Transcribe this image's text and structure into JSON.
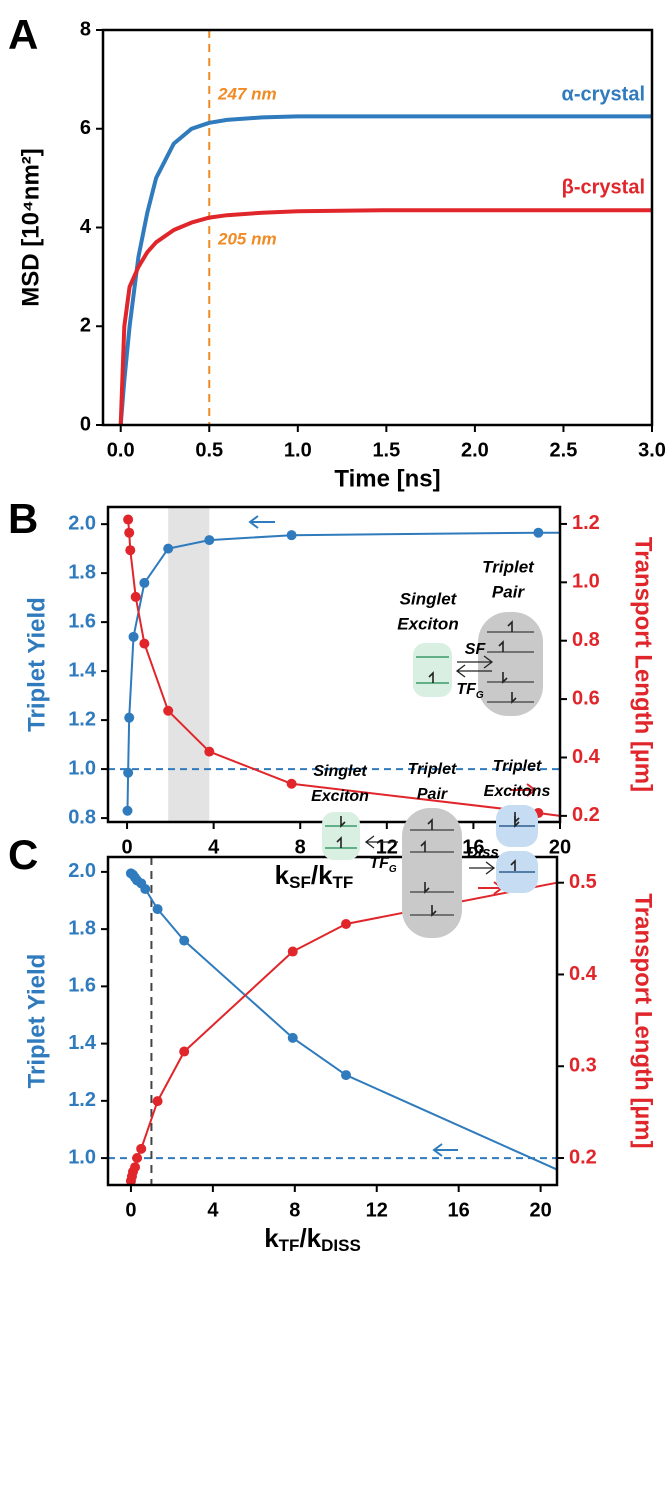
{
  "chart_data": [
    {
      "type": "line",
      "panel": "A",
      "xlabel": "Time [ns]",
      "ylabel": "MSD [10⁴nm²]",
      "xlim": [
        -0.1,
        3.0
      ],
      "ylim": [
        0,
        8
      ],
      "xticks": [
        {
          "value": 0,
          "label": "0.0"
        },
        0.5,
        {
          "value": 1,
          "label": "1.0"
        },
        1.5,
        {
          "value": 2,
          "label": "2.0"
        },
        2.5,
        {
          "value": 3,
          "label": "3.0"
        }
      ],
      "yticks": [
        0,
        2,
        4,
        6,
        8
      ],
      "x": [
        0,
        0.02,
        0.05,
        0.1,
        0.15,
        0.2,
        0.3,
        0.4,
        0.5,
        0.6,
        0.8,
        1.0,
        1.5,
        2.0,
        2.5,
        3.0
      ],
      "series": [
        {
          "name": "α-crystal",
          "color": "#2f7bbd",
          "values": [
            0,
            0.9,
            2.0,
            3.4,
            4.3,
            5.0,
            5.7,
            6.0,
            6.12,
            6.18,
            6.23,
            6.25,
            6.25,
            6.25,
            6.25,
            6.25
          ]
        },
        {
          "name": "β-crystal",
          "color": "#e0262b",
          "values": [
            0,
            2.0,
            2.8,
            3.2,
            3.5,
            3.7,
            3.95,
            4.1,
            4.2,
            4.25,
            4.3,
            4.33,
            4.35,
            4.35,
            4.35,
            4.35
          ]
        }
      ],
      "vline": 0.5,
      "vline_color": "#f08a24",
      "annotations": [
        "247 nm",
        "205 nm"
      ]
    },
    {
      "type": "line",
      "panel": "B",
      "xlabel": [
        "k",
        "SF",
        "/k",
        "TF"
      ],
      "ylabel": "Triplet Yield",
      "y2label": "Transport Length [µm]",
      "xlim": [
        -0.88,
        20
      ],
      "ylim": [
        0.784,
        2.07
      ],
      "y2lim": [
        0.179,
        1.258
      ],
      "xticks": [
        0,
        4,
        8,
        12,
        16,
        20
      ],
      "yticks": [
        0.8,
        {
          "value": 1,
          "label": "1.0"
        },
        1.2,
        1.4,
        1.6,
        1.8,
        {
          "value": 2,
          "label": "2.0"
        }
      ],
      "y2ticks": [
        0.2,
        0.4,
        0.6,
        0.8,
        {
          "value": 1,
          "label": "1.0"
        },
        1.2
      ],
      "markers": true,
      "series": [
        {
          "color": "#2f7bbd",
          "x": [
            0.02,
            0.05,
            0.1,
            0.3,
            0.8,
            1.9,
            3.8,
            7.6,
            19
          ],
          "values": [
            0.83,
            0.985,
            1.21,
            1.54,
            1.76,
            1.9,
            1.935,
            1.955,
            1.965
          ],
          "line_end": [
            20,
            1.965
          ]
        },
        {
          "color": "#e0262b",
          "axis": "y2",
          "x": [
            0.05,
            0.1,
            0.15,
            0.4,
            0.8,
            1.9,
            3.8,
            7.6,
            19
          ],
          "values": [
            1.215,
            1.17,
            1.11,
            0.95,
            0.79,
            0.56,
            0.42,
            0.31,
            0.21
          ],
          "line_end": [
            20,
            0.2
          ]
        }
      ],
      "shade": [
        1.9,
        3.8
      ],
      "hline": 1,
      "hline_color": "#2f7bbd",
      "inset": {
        "singlet": [
          "Singlet",
          "Exciton"
        ],
        "pair": [
          "Triplet",
          "Pair"
        ],
        "forward": "SF",
        "back": [
          "TF",
          "G"
        ]
      }
    },
    {
      "type": "line",
      "panel": "C",
      "xlabel": [
        "k",
        "TF",
        "/k",
        "DISS"
      ],
      "ylabel": "Triplet Yield",
      "y2label": "Transport Length [µm]",
      "xlim": [
        -1.12,
        20.8
      ],
      "ylim": [
        0.906,
        2.052
      ],
      "y2lim": [
        0.1706,
        0.528
      ],
      "xticks": [
        0,
        4,
        8,
        12,
        16,
        20
      ],
      "yticks": [
        {
          "value": 1,
          "label": "1.0"
        },
        1.2,
        1.4,
        1.6,
        1.8,
        {
          "value": 2,
          "label": "2.0"
        }
      ],
      "y2ticks": [
        0.2,
        0.3,
        0.4,
        0.5
      ],
      "markers": true,
      "series": [
        {
          "color": "#2f7bbd",
          "x": [
            0,
            0.1,
            0.2,
            0.3,
            0.5,
            0.7,
            1.3,
            2.6,
            7.9,
            10.5
          ],
          "values": [
            1.995,
            1.99,
            1.98,
            1.97,
            1.96,
            1.94,
            1.87,
            1.76,
            1.42,
            1.29
          ],
          "line_end": [
            20.8,
            0.96
          ]
        },
        {
          "color": "#e0262b",
          "axis": "y2",
          "x": [
            0,
            0.05,
            0.1,
            0.2,
            0.3,
            0.5,
            1.3,
            2.6,
            7.9,
            10.5
          ],
          "values": [
            0.175,
            0.18,
            0.185,
            0.19,
            0.2,
            0.21,
            0.262,
            0.316,
            0.425,
            0.455
          ],
          "line_end": [
            20.8,
            0.5
          ]
        }
      ],
      "hline": 1,
      "hline_color": "#2f7bbd",
      "vline": 1,
      "vline_color": "#444444",
      "inset": {
        "singlet": [
          "Singlet",
          "Exciton"
        ],
        "pair": [
          "Triplet",
          "Pair"
        ],
        "excitons": [
          "Triplet",
          "Excitons"
        ],
        "back": [
          "TF",
          "G"
        ],
        "forward": "Diss"
      }
    }
  ]
}
